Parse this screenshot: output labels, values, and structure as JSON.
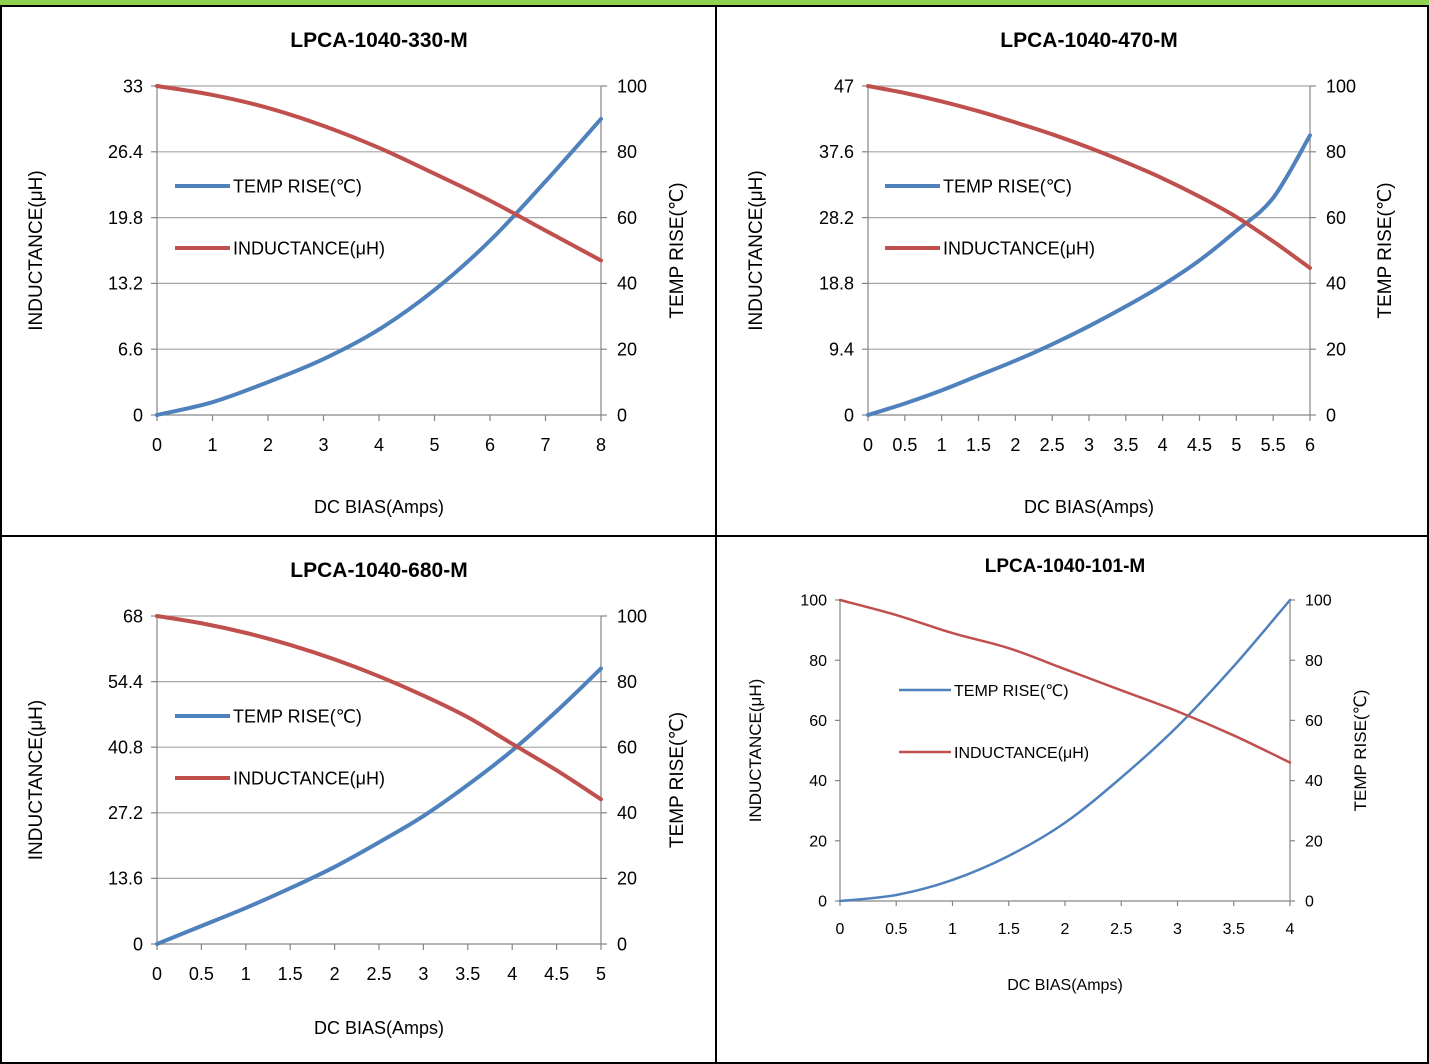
{
  "colors": {
    "temp": "#4f81bd",
    "inductance": "#c0504d",
    "grid": "#a6a6a6",
    "axis": "#868686",
    "border": "#000000",
    "topline": "#92d050"
  },
  "chart_data": [
    {
      "type": "line",
      "title": "LPCA-1040-330-M",
      "xlabel": "DC  BIAS(Amps)",
      "ylabel": "INDUCTANCE(μH)",
      "y2label": "TEMP RISE(℃)",
      "x_ticks": [
        "0",
        "1",
        "2",
        "3",
        "4",
        "5",
        "6",
        "7",
        "8"
      ],
      "xlim": [
        0,
        8
      ],
      "y_ticks": [
        "0",
        "6.6",
        "13.2",
        "19.8",
        "26.4",
        "33"
      ],
      "ylim": [
        0,
        33
      ],
      "y2_ticks": [
        "0",
        "20",
        "40",
        "60",
        "80",
        "100"
      ],
      "y2lim": [
        0,
        100
      ],
      "grid": true,
      "legend_position": "left-inside",
      "series": [
        {
          "name": "TEMP RISE(℃)",
          "axis": "y2",
          "color": "temp",
          "x": [
            0,
            1,
            2,
            3,
            4,
            5,
            6,
            7,
            8
          ],
          "y": [
            0,
            3.9,
            10,
            17,
            26,
            38,
            53,
            71,
            90
          ]
        },
        {
          "name": "INDUCTANCE(μH)",
          "axis": "y",
          "color": "inductance",
          "x": [
            0,
            1,
            2,
            3,
            4,
            5,
            6,
            7,
            8
          ],
          "y": [
            33,
            32.1,
            30.8,
            29.0,
            26.8,
            24.2,
            21.5,
            18.5,
            15.5
          ]
        }
      ]
    },
    {
      "type": "line",
      "title": "LPCA-1040-470-M",
      "xlabel": "DC  BIAS(Amps)",
      "ylabel": "INDUCTANCE(μH)",
      "y2label": "TEMP RISE(℃)",
      "x_ticks": [
        "0",
        "0.5",
        "1",
        "1.5",
        "2",
        "2.5",
        "3",
        "3.5",
        "4",
        "4.5",
        "5",
        "5.5",
        "6"
      ],
      "xlim": [
        0,
        6
      ],
      "y_ticks": [
        "0",
        "9.4",
        "18.8",
        "28.2",
        "37.6",
        "47"
      ],
      "ylim": [
        0,
        47
      ],
      "y2_ticks": [
        "0",
        "20",
        "40",
        "60",
        "80",
        "100"
      ],
      "y2lim": [
        0,
        100
      ],
      "grid": true,
      "legend_position": "left-inside",
      "series": [
        {
          "name": "TEMP RISE(℃)",
          "axis": "y2",
          "color": "temp",
          "x": [
            0,
            0.5,
            1,
            1.5,
            2,
            2.5,
            3,
            3.5,
            4,
            4.5,
            5,
            5.5,
            6
          ],
          "y": [
            0,
            3.5,
            7.5,
            12,
            16.5,
            21.5,
            27,
            33,
            39.5,
            47,
            56,
            66,
            85
          ]
        },
        {
          "name": "INDUCTANCE(μH)",
          "axis": "y",
          "color": "inductance",
          "x": [
            0,
            0.5,
            1,
            1.5,
            2,
            2.5,
            3,
            3.5,
            4,
            4.5,
            5,
            5.5,
            6
          ],
          "y": [
            47,
            46.0,
            44.8,
            43.4,
            41.8,
            40.1,
            38.2,
            36.1,
            33.8,
            31.2,
            28.3,
            24.8,
            21.0
          ]
        }
      ]
    },
    {
      "type": "line",
      "title": "LPCA-1040-680-M",
      "xlabel": "DC  BIAS(Amps)",
      "ylabel": "INDUCTANCE(μH)",
      "y2label": "TEMP RISE(℃)",
      "x_ticks": [
        "0",
        "0.5",
        "1",
        "1.5",
        "2",
        "2.5",
        "3",
        "3.5",
        "4",
        "4.5",
        "5"
      ],
      "xlim": [
        0,
        5
      ],
      "y_ticks": [
        "0",
        "13.6",
        "27.2",
        "40.8",
        "54.4",
        "68"
      ],
      "ylim": [
        0,
        68
      ],
      "y2_ticks": [
        "0",
        "20",
        "40",
        "60",
        "80",
        "100"
      ],
      "y2lim": [
        0,
        100
      ],
      "grid": true,
      "legend_position": "left-inside",
      "series": [
        {
          "name": "TEMP RISE(℃)",
          "axis": "y2",
          "color": "temp",
          "x": [
            0,
            0.5,
            1,
            1.5,
            2,
            2.5,
            3,
            3.5,
            4,
            4.5,
            5
          ],
          "y": [
            0,
            5.5,
            11,
            17,
            23.5,
            31,
            39,
            48.5,
            59,
            71,
            84
          ]
        },
        {
          "name": "INDUCTANCE(μH)",
          "axis": "y",
          "color": "inductance",
          "x": [
            0,
            0.5,
            1,
            1.5,
            2,
            2.5,
            3,
            3.5,
            4,
            4.5,
            5
          ],
          "y": [
            68,
            66.5,
            64.5,
            62.0,
            59.0,
            55.5,
            51.5,
            47.0,
            41.5,
            36.0,
            30.0
          ]
        }
      ]
    },
    {
      "type": "line",
      "title": "LPCA-1040-101-M",
      "xlabel": "DC BIAS(Amps)",
      "ylabel": "INDUCTANCE(μH)",
      "y2label": "TEMP RISE(℃)",
      "x_ticks": [
        "0",
        "0.5",
        "1",
        "1.5",
        "2",
        "2.5",
        "3",
        "3.5",
        "4"
      ],
      "xlim": [
        0,
        4
      ],
      "y_ticks": [
        "0",
        "20",
        "40",
        "60",
        "80",
        "100"
      ],
      "ylim": [
        0,
        100
      ],
      "y2_ticks": [
        "0",
        "20",
        "40",
        "60",
        "80",
        "100"
      ],
      "y2lim": [
        0,
        100
      ],
      "grid": false,
      "legend_position": "left-inside",
      "series": [
        {
          "name": "TEMP RISE(℃)",
          "axis": "y2",
          "color": "temp",
          "x": [
            0,
            0.5,
            1,
            1.5,
            2,
            2.5,
            3,
            3.5,
            4
          ],
          "y": [
            0,
            2,
            7,
            15,
            26,
            41,
            58,
            78,
            100
          ]
        },
        {
          "name": "INDUCTANCE(μH)",
          "axis": "y",
          "color": "inductance",
          "x": [
            0,
            0.5,
            1,
            1.5,
            2,
            2.5,
            3,
            3.5,
            4
          ],
          "y": [
            100,
            95,
            89,
            84,
            77,
            70,
            63,
            55,
            46
          ]
        }
      ]
    }
  ]
}
